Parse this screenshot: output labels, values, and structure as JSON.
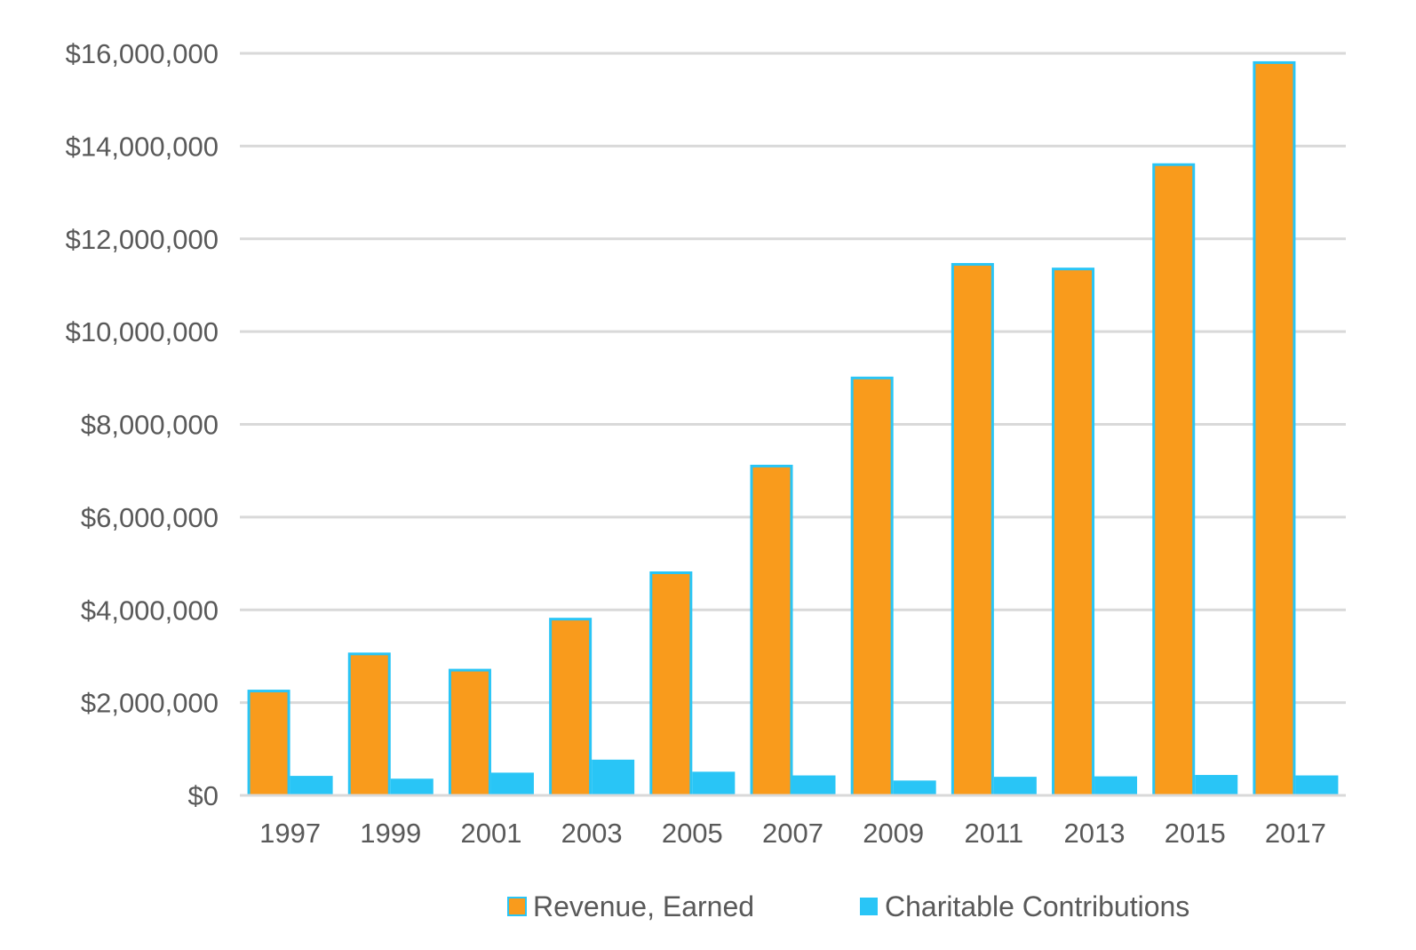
{
  "chart_data": {
    "type": "bar",
    "title": "",
    "xlabel": "",
    "ylabel": "",
    "ylim": [
      0,
      16000000
    ],
    "y_ticks": [
      0,
      2000000,
      4000000,
      6000000,
      8000000,
      10000000,
      12000000,
      14000000,
      16000000
    ],
    "y_tick_labels": [
      "$0",
      "$2,000,000",
      "$4,000,000",
      "$6,000,000",
      "$8,000,000",
      "$10,000,000",
      "$12,000,000",
      "$14,000,000",
      "$16,000,000"
    ],
    "grid": true,
    "legend_position": "bottom",
    "categories": [
      "1997",
      "1999",
      "2001",
      "2003",
      "2005",
      "2007",
      "2009",
      "2011",
      "2013",
      "2015",
      "2017"
    ],
    "series": [
      {
        "name": "Revenue, Earned",
        "color": "#F99B1C",
        "border_color": "#29C5F6",
        "values": [
          2250000,
          3050000,
          2700000,
          3800000,
          4800000,
          7100000,
          9000000,
          11450000,
          11350000,
          13600000,
          15800000
        ]
      },
      {
        "name": "Charitable Contributions",
        "color": "#29C5F6",
        "values": [
          420000,
          360000,
          490000,
          770000,
          510000,
          430000,
          320000,
          400000,
          410000,
          440000,
          430000
        ]
      }
    ]
  }
}
